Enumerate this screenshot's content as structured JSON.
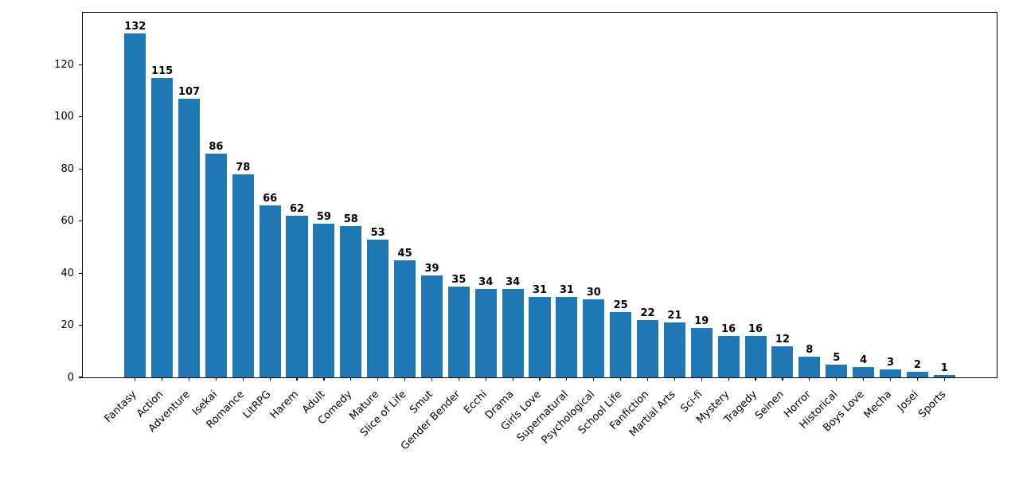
{
  "chart_data": {
    "type": "bar",
    "title": "",
    "xlabel": "",
    "ylabel": "",
    "categories": [
      "Fantasy",
      "Action",
      "Adventure",
      "Isekai",
      "Romance",
      "LitRPG",
      "Harem",
      "Adult",
      "Comedy",
      "Mature",
      "Slice of Life",
      "Smut",
      "Gender Bender",
      "Ecchi",
      "Drama",
      "Girls Love",
      "Supernatural",
      "Psychological",
      "School Life",
      "Fanfiction",
      "Martial Arts",
      "Sci-fi",
      "Mystery",
      "Tragedy",
      "Seinen",
      "Horror",
      "Historical",
      "Boys Love",
      "Mecha",
      "Josei",
      "Sports"
    ],
    "values": [
      132,
      115,
      107,
      86,
      78,
      66,
      62,
      59,
      58,
      53,
      45,
      39,
      35,
      34,
      34,
      31,
      31,
      30,
      25,
      22,
      21,
      19,
      16,
      16,
      12,
      8,
      5,
      4,
      3,
      2,
      1
    ],
    "value_labels_shown": true,
    "yticks": [
      0,
      20,
      40,
      60,
      80,
      100,
      120
    ],
    "ylim": [
      0,
      140
    ],
    "xtick_rotation_deg": 45,
    "grid": false,
    "legend": null,
    "bar_color": "#1f77b4",
    "text_color": "#000000",
    "background_color": "#ffffff"
  }
}
